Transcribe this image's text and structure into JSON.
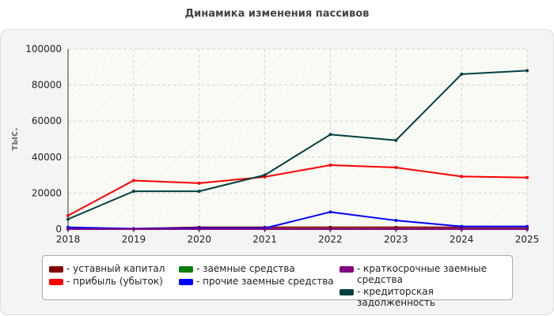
{
  "title": "Динамика изменения пассивов",
  "chart_data": {
    "type": "line",
    "title": "Динамика изменения пассивов",
    "ylabel": "тыс.",
    "xlabel": "",
    "ylim": [
      0,
      100000
    ],
    "yticks": [
      0,
      20000,
      40000,
      60000,
      80000,
      100000
    ],
    "x": [
      "2018",
      "2019",
      "2020",
      "2021",
      "2022",
      "2023",
      "2024",
      "2025"
    ],
    "grid": true,
    "legend_position": "bottom",
    "series": [
      {
        "name": "- уставный капитал",
        "color": "#800000",
        "values": [
          500,
          200,
          1000,
          1000,
          1000,
          1000,
          1000,
          1000
        ]
      },
      {
        "name": "- прибыль (убыток)",
        "color": "#ff0000",
        "values": [
          7500,
          27000,
          25500,
          29000,
          35500,
          34200,
          29200,
          28600
        ]
      },
      {
        "name": "- заемные средства",
        "color": "#008000",
        "values": [
          0,
          0,
          0,
          0,
          0,
          0,
          0,
          0
        ]
      },
      {
        "name": "- прочие заемные средства",
        "color": "#0000ff",
        "values": [
          1000,
          200,
          500,
          500,
          9500,
          4800,
          1500,
          1500
        ]
      },
      {
        "name": "- краткосрочные заемные средства",
        "color": "#800080",
        "values": [
          0,
          0,
          0,
          0,
          0,
          0,
          0,
          0
        ]
      },
      {
        "name": "- кредиторская задолженность",
        "color": "#004040",
        "values": [
          5500,
          21000,
          21000,
          30000,
          52500,
          49300,
          86000,
          88000
        ]
      }
    ]
  }
}
